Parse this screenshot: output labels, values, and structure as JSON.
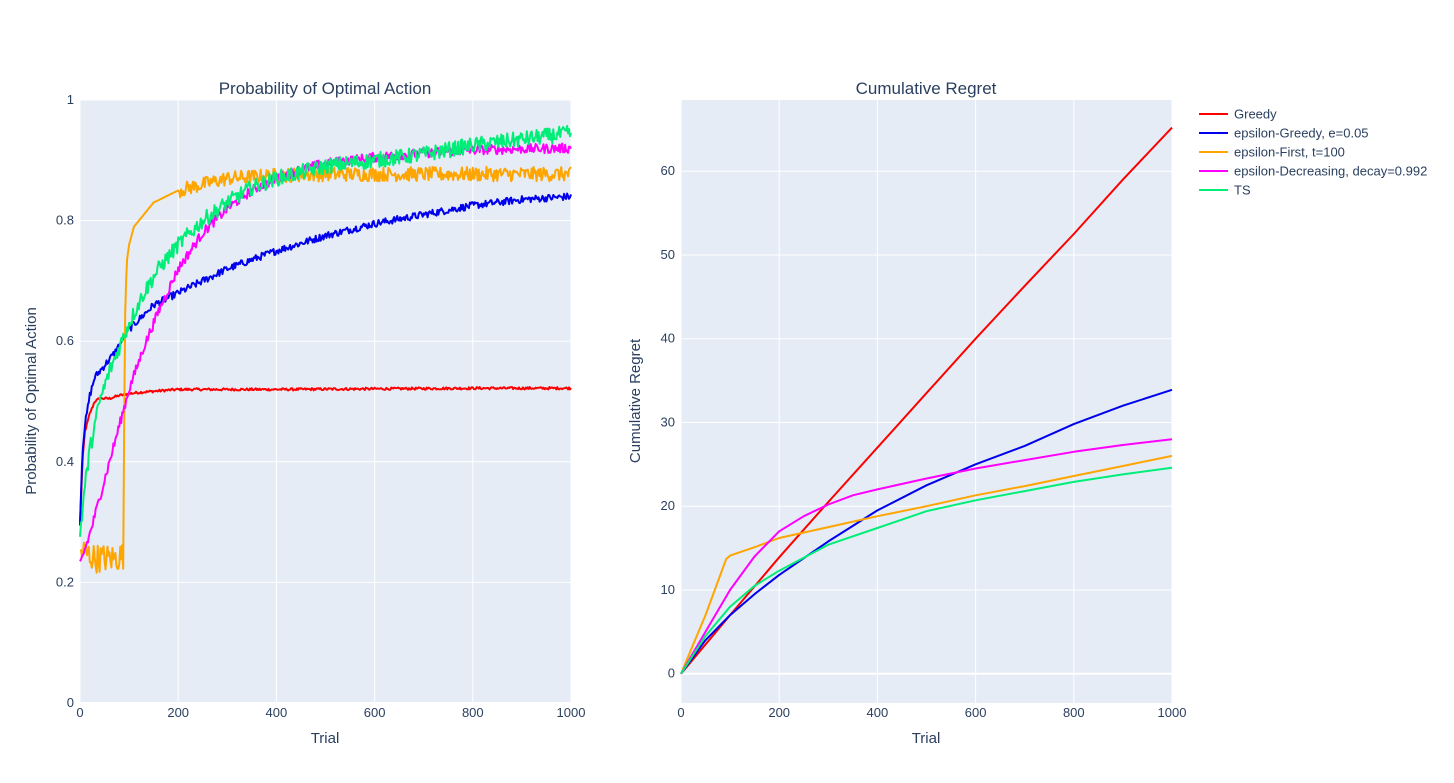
{
  "chart_data": [
    {
      "type": "line",
      "title": "Probability of Optimal Action",
      "xlabel": "Trial",
      "ylabel": "Probability of Optimal Action",
      "xlim": [
        0,
        1000
      ],
      "ylim": [
        0,
        1
      ],
      "x_ticks": [
        0,
        200,
        400,
        600,
        800,
        1000
      ],
      "y_ticks": [
        0,
        0.2,
        0.4,
        0.6,
        0.8,
        1
      ],
      "y_tick_labels": [
        "0",
        "0.2",
        "0.4",
        "0.6",
        "0.8",
        "1"
      ],
      "grid": true,
      "legend": "none",
      "series": [
        {
          "name": "Greedy",
          "color": "#ff0000",
          "noise": 0.002,
          "x": [
            0,
            5,
            10,
            20,
            30,
            40,
            50,
            60,
            80,
            100,
            120,
            150,
            200,
            300,
            400,
            600,
            800,
            1000
          ],
          "y": [
            0.3,
            0.4,
            0.45,
            0.48,
            0.5,
            0.505,
            0.505,
            0.505,
            0.51,
            0.513,
            0.515,
            0.517,
            0.52,
            0.52,
            0.52,
            0.521,
            0.522,
            0.522
          ]
        },
        {
          "name": "epsilon-Greedy, e=0.05",
          "color": "#0000ee",
          "noise": 0.006,
          "x": [
            0,
            5,
            10,
            20,
            30,
            50,
            70,
            100,
            150,
            200,
            300,
            400,
            500,
            600,
            700,
            800,
            900,
            1000
          ],
          "y": [
            0.3,
            0.42,
            0.46,
            0.51,
            0.54,
            0.56,
            0.58,
            0.62,
            0.66,
            0.68,
            0.72,
            0.75,
            0.775,
            0.795,
            0.81,
            0.825,
            0.835,
            0.84
          ]
        },
        {
          "name": "epsilon-First, t=100",
          "color": "#ffa500",
          "noise": 0.012,
          "noise_until": 92,
          "x": [
            0,
            10,
            30,
            50,
            70,
            88,
            92,
            95,
            100,
            110,
            120,
            150,
            200,
            250,
            300,
            400,
            500,
            600,
            800,
            1000
          ],
          "y": [
            0.25,
            0.25,
            0.24,
            0.24,
            0.24,
            0.245,
            0.65,
            0.73,
            0.76,
            0.79,
            0.8,
            0.83,
            0.85,
            0.86,
            0.87,
            0.875,
            0.877,
            0.877,
            0.877,
            0.877
          ]
        },
        {
          "name": "epsilon-Decreasing, decay=0.992",
          "color": "#ff00ff",
          "noise": 0.008,
          "x": [
            0,
            20,
            40,
            60,
            80,
            100,
            130,
            160,
            200,
            250,
            300,
            350,
            400,
            450,
            500,
            600,
            700,
            800,
            900,
            1000
          ],
          "y": [
            0.23,
            0.28,
            0.34,
            0.4,
            0.46,
            0.52,
            0.59,
            0.65,
            0.72,
            0.78,
            0.82,
            0.85,
            0.87,
            0.885,
            0.895,
            0.905,
            0.912,
            0.917,
            0.919,
            0.92
          ]
        },
        {
          "name": "TS",
          "color": "#00ee77",
          "noise": 0.013,
          "x": [
            0,
            10,
            20,
            40,
            60,
            80,
            100,
            130,
            160,
            200,
            250,
            300,
            350,
            400,
            450,
            500,
            600,
            700,
            800,
            900,
            1000
          ],
          "y": [
            0.28,
            0.36,
            0.42,
            0.5,
            0.55,
            0.59,
            0.63,
            0.68,
            0.72,
            0.76,
            0.8,
            0.83,
            0.855,
            0.87,
            0.88,
            0.89,
            0.9,
            0.91,
            0.925,
            0.935,
            0.945
          ]
        }
      ]
    },
    {
      "type": "line",
      "title": "Cumulative Regret",
      "xlabel": "Trial",
      "ylabel": "Cumulative Regret",
      "xlim": [
        0,
        1000
      ],
      "ylim": [
        -3.5,
        68.5
      ],
      "x_ticks": [
        0,
        200,
        400,
        600,
        800,
        1000
      ],
      "y_ticks": [
        0,
        10,
        20,
        30,
        40,
        50,
        60
      ],
      "y_tick_labels": [
        "0",
        "10",
        "20",
        "30",
        "40",
        "50",
        "60"
      ],
      "grid": true,
      "legend": "right",
      "series": [
        {
          "name": "Greedy",
          "color": "#ff0000",
          "x": [
            0,
            100,
            200,
            300,
            400,
            500,
            600,
            700,
            800,
            900,
            1000
          ],
          "y": [
            0,
            7,
            13.9,
            20.5,
            27,
            33.5,
            40,
            46.3,
            52.5,
            59,
            65.2
          ]
        },
        {
          "name": "epsilon-Greedy, e=0.05",
          "color": "#0000ee",
          "x": [
            0,
            50,
            100,
            150,
            200,
            300,
            400,
            500,
            600,
            700,
            800,
            900,
            1000
          ],
          "y": [
            0,
            4,
            7,
            9.5,
            11.8,
            15.8,
            19.5,
            22.5,
            25,
            27.2,
            29.8,
            32,
            33.9
          ]
        },
        {
          "name": "epsilon-First, t=100",
          "color": "#ffa500",
          "x": [
            0,
            50,
            92,
            100,
            150,
            200,
            300,
            400,
            500,
            600,
            700,
            800,
            900,
            1000
          ],
          "y": [
            0,
            7,
            13.7,
            14.1,
            15.1,
            16.2,
            17.5,
            18.8,
            20,
            21.3,
            22.4,
            23.6,
            24.8,
            26
          ]
        },
        {
          "name": "epsilon-Decreasing, decay=0.992",
          "color": "#ff00ff",
          "x": [
            0,
            50,
            100,
            150,
            200,
            250,
            300,
            350,
            400,
            500,
            600,
            700,
            800,
            900,
            1000
          ],
          "y": [
            0,
            5,
            10,
            14,
            17,
            18.8,
            20.2,
            21.3,
            22,
            23.3,
            24.5,
            25.5,
            26.5,
            27.3,
            28
          ]
        },
        {
          "name": "TS",
          "color": "#00ee77",
          "x": [
            0,
            50,
            100,
            150,
            200,
            300,
            400,
            500,
            600,
            700,
            800,
            900,
            1000
          ],
          "y": [
            0,
            4.5,
            8,
            10.5,
            12.3,
            15.4,
            17.4,
            19.4,
            20.7,
            21.8,
            22.9,
            23.8,
            24.6
          ]
        }
      ]
    }
  ]
}
